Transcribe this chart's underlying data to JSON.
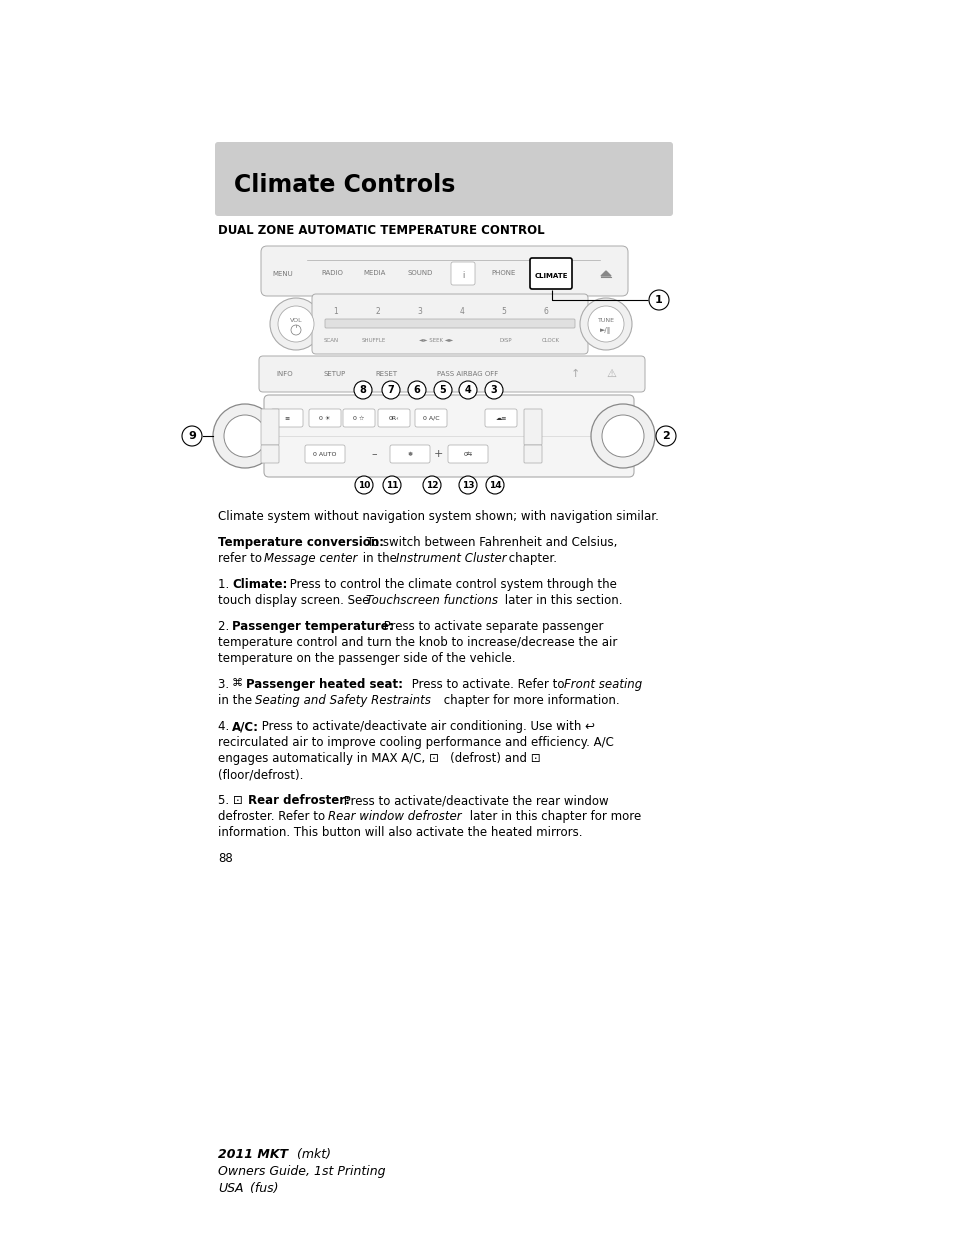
{
  "bg_color": "#ffffff",
  "header_bg": "#cccccc",
  "page_title": "Climate Controls",
  "section_title": "DUAL ZONE AUTOMATIC TEMPERATURE CONTROL",
  "footer_text": "2011 MKT (mkt)\nOwners Guide, 1st Printing\nUSA (fus)"
}
